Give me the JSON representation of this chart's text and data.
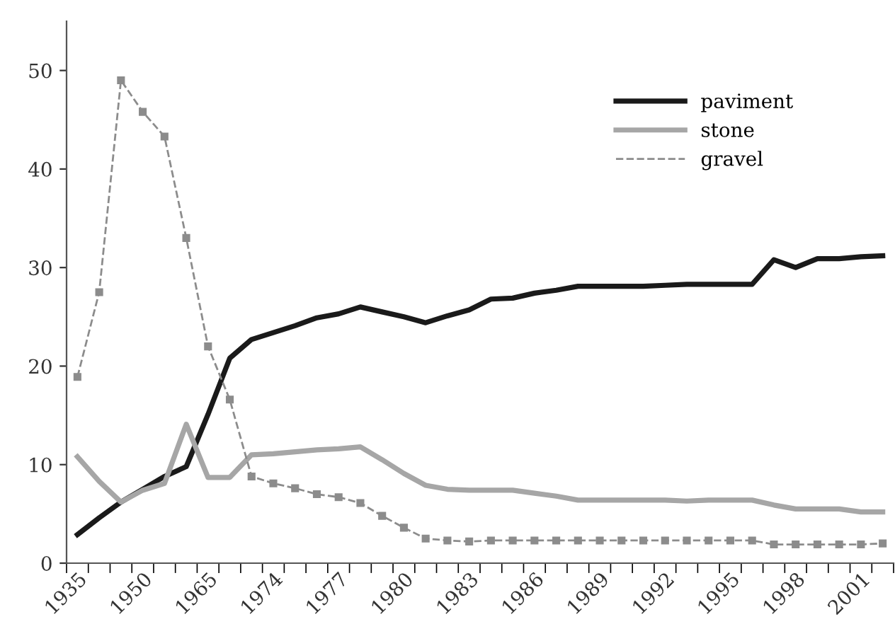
{
  "chart_data": {
    "type": "line",
    "categories": [
      "1935",
      null,
      null,
      "1950",
      null,
      null,
      "1965",
      null,
      null,
      "1974",
      null,
      null,
      "1977",
      null,
      null,
      "1980",
      null,
      null,
      "1983",
      null,
      null,
      "1986",
      null,
      null,
      "1989",
      null,
      null,
      "1992",
      null,
      null,
      "1995",
      null,
      null,
      "1998",
      null,
      null,
      "2001",
      null
    ],
    "series": [
      {
        "name": "paviment",
        "color": "#1a1a1a",
        "line_style": "solid",
        "marker": "none",
        "values": [
          2.9,
          4.6,
          6.2,
          7.5,
          8.8,
          9.8,
          15.1,
          20.8,
          22.7,
          23.4,
          24.1,
          24.9,
          25.3,
          26.0,
          25.5,
          25.0,
          24.4,
          25.1,
          25.7,
          26.8,
          26.9,
          27.4,
          27.7,
          28.1,
          28.1,
          28.1,
          28.1,
          28.2,
          28.3,
          28.3,
          28.3,
          28.3,
          30.8,
          30.0,
          30.9,
          30.9,
          31.1,
          31.2
        ]
      },
      {
        "name": "stone",
        "color": "#a6a6a6",
        "line_style": "solid",
        "marker": "none",
        "values": [
          10.8,
          8.3,
          6.2,
          7.4,
          8.1,
          14.1,
          8.7,
          8.7,
          11.0,
          11.1,
          11.3,
          11.5,
          11.6,
          11.8,
          10.5,
          9.1,
          7.9,
          7.5,
          7.4,
          7.4,
          7.4,
          7.1,
          6.8,
          6.4,
          6.4,
          6.4,
          6.4,
          6.4,
          6.3,
          6.4,
          6.4,
          6.4,
          5.9,
          5.5,
          5.5,
          5.5,
          5.2,
          5.2
        ]
      },
      {
        "name": "gravel",
        "color": "#8c8c8c",
        "line_style": "dashed",
        "marker": "square",
        "values": [
          18.9,
          27.5,
          49.0,
          45.8,
          43.3,
          33.0,
          22.0,
          16.6,
          8.8,
          8.1,
          7.6,
          7.0,
          6.7,
          6.1,
          4.8,
          3.6,
          2.5,
          2.3,
          2.2,
          2.3,
          2.3,
          2.3,
          2.3,
          2.3,
          2.3,
          2.3,
          2.3,
          2.3,
          2.3,
          2.3,
          2.3,
          2.3,
          1.9,
          1.9,
          1.9,
          1.9,
          1.9,
          2.0
        ]
      }
    ],
    "ylim": [
      0,
      55
    ],
    "yticks": [
      0,
      10,
      20,
      30,
      40,
      50
    ],
    "grid": false,
    "legend": "top right"
  }
}
